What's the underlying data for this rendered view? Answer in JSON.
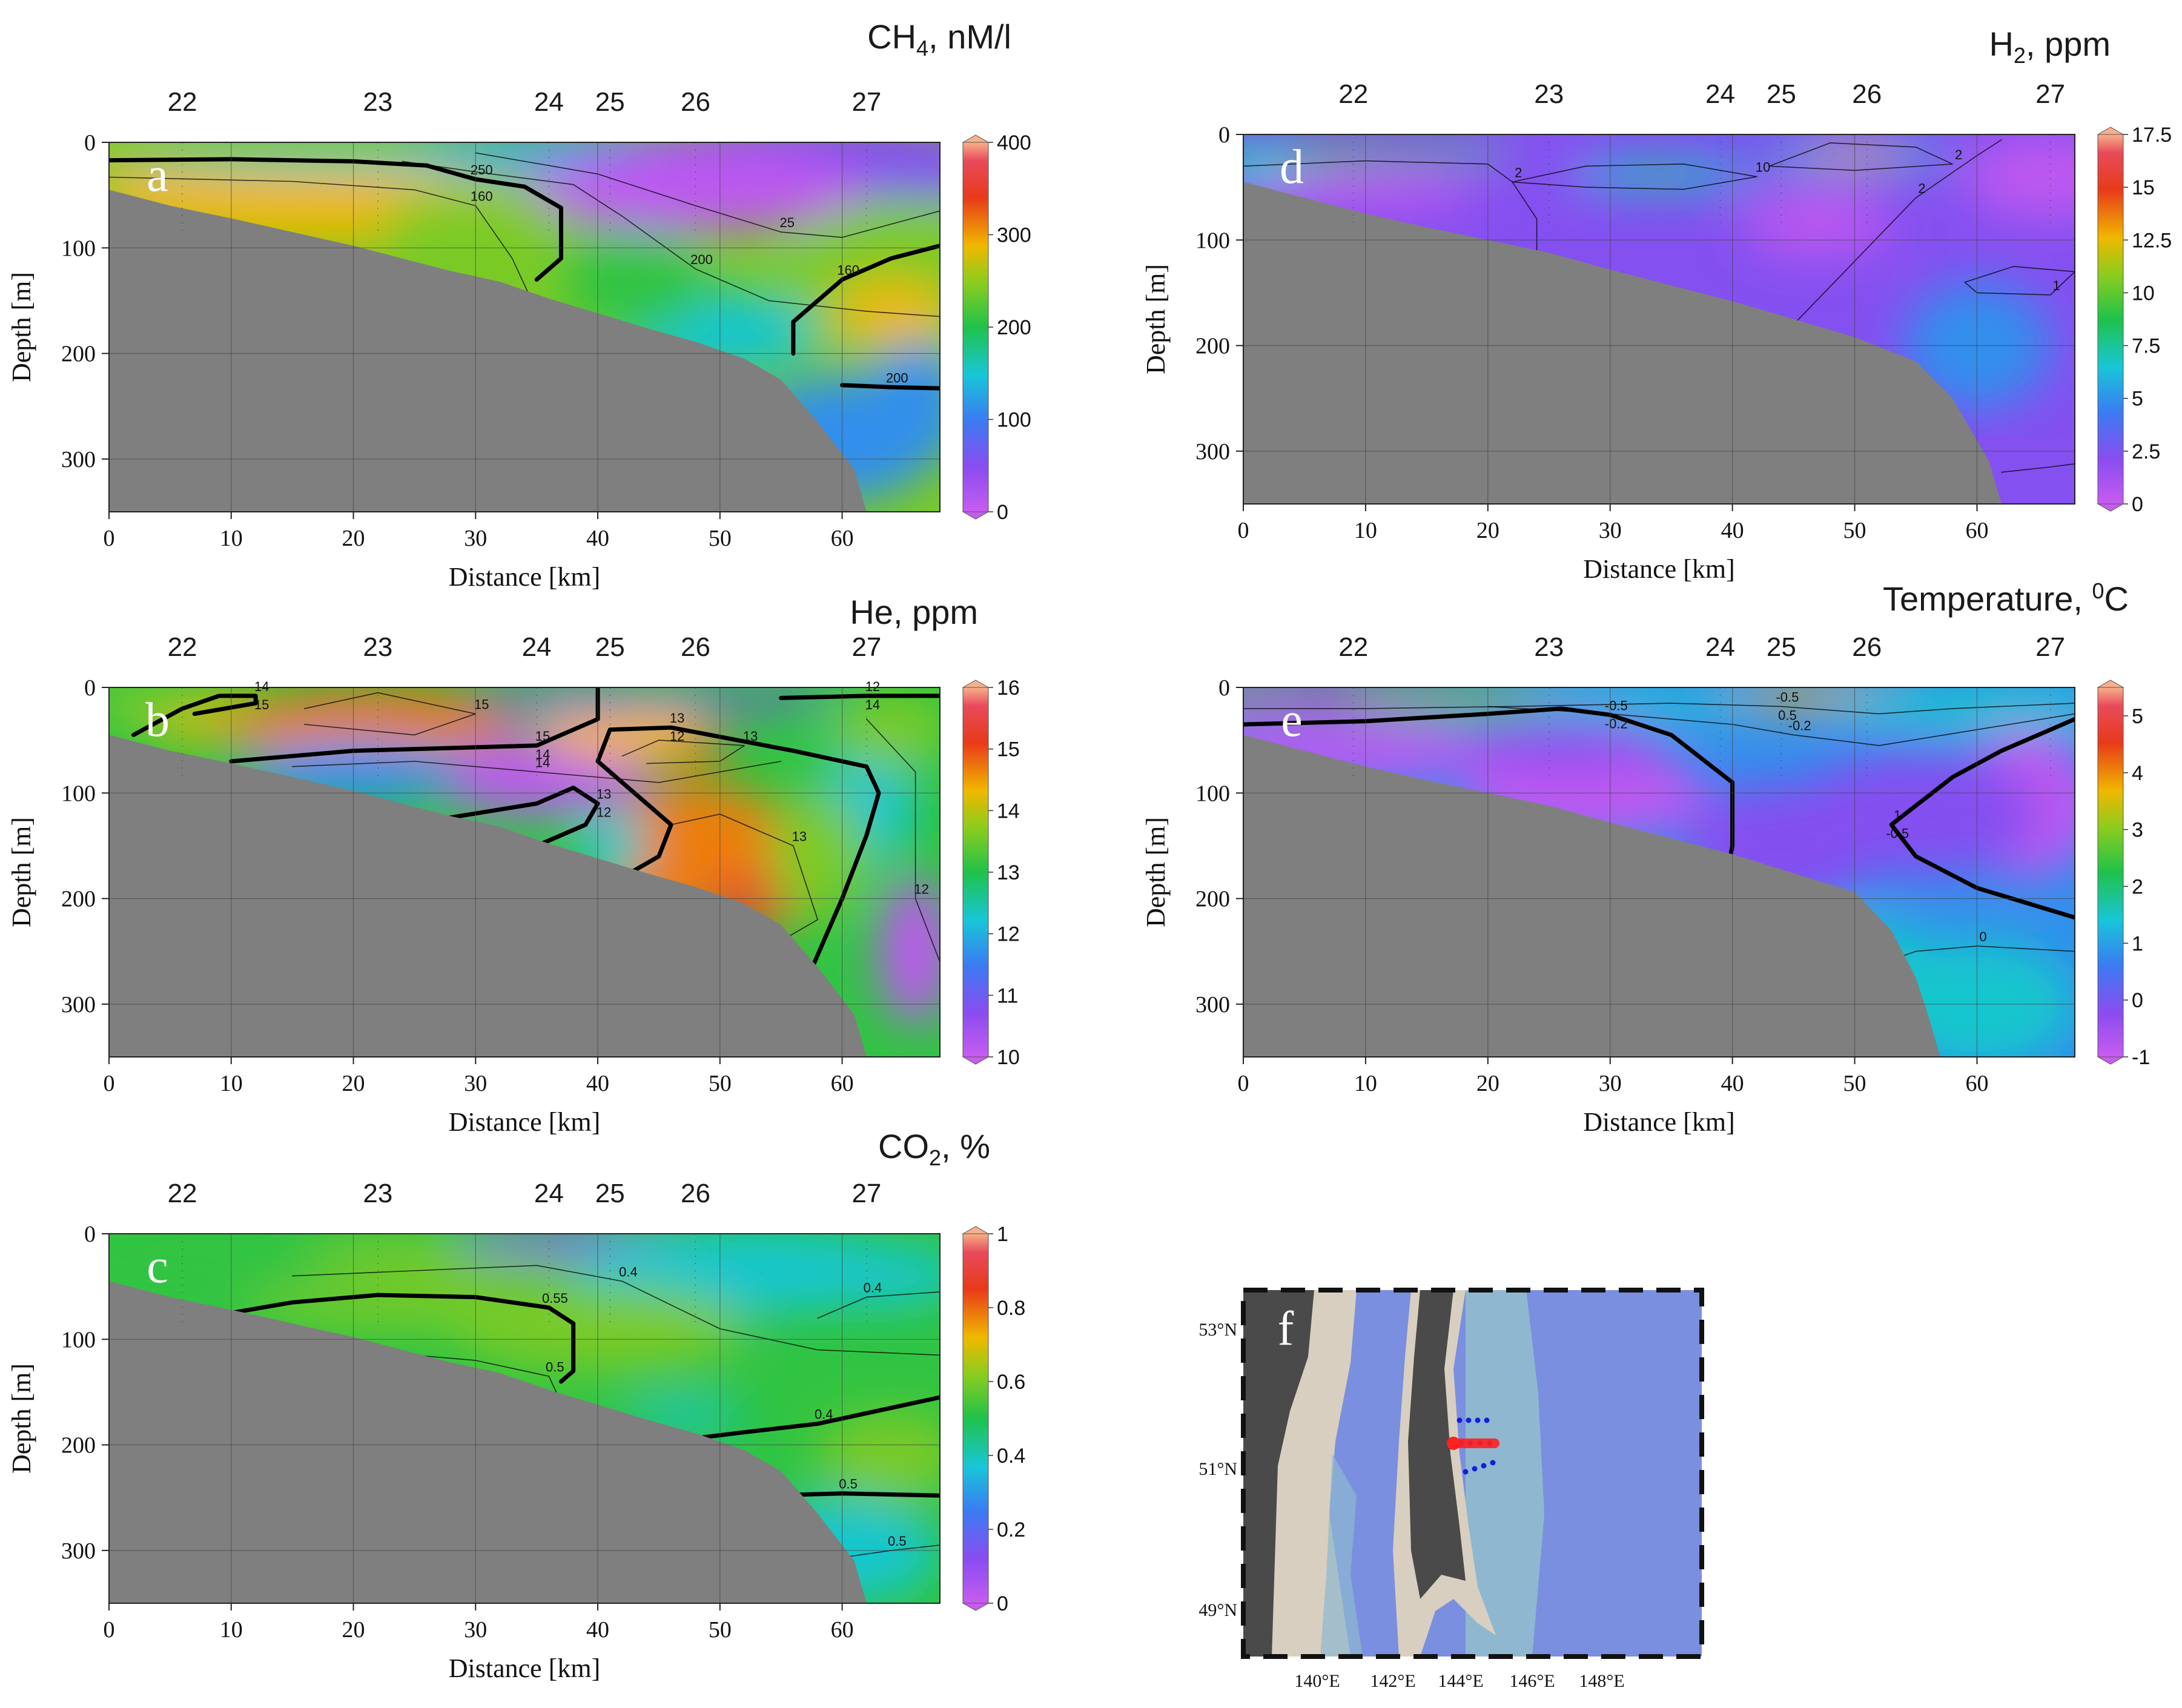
{
  "colors": {
    "seafloor": "#7f7f7f",
    "contour": "#000000",
    "grid": "#444444",
    "land": "#4a4a4a",
    "shelf": "#d8cfc0",
    "sea_shallow": "#8fb8d0",
    "sea_deep": "#7b8fe0",
    "station_route": "#ff2020",
    "station_dots": "#1020e0"
  },
  "chart_data": [
    {
      "id": "a",
      "type": "heatmap",
      "panel_label": "a",
      "title": "CH",
      "title_sub": "4",
      "title_rest": ", nM/l",
      "xlabel": "Distance [km]",
      "ylabel": "Depth [m]",
      "xlim": [
        0,
        68
      ],
      "ylim": [
        0,
        350
      ],
      "xticks": [
        0,
        10,
        20,
        30,
        40,
        50,
        60
      ],
      "yticks": [
        0,
        100,
        200,
        300
      ],
      "stations": [
        {
          "label": "22",
          "x": 6
        },
        {
          "label": "23",
          "x": 22
        },
        {
          "label": "24",
          "x": 36
        },
        {
          "label": "25",
          "x": 41
        },
        {
          "label": "26",
          "x": 48
        },
        {
          "label": "27",
          "x": 62
        }
      ],
      "colorbar": {
        "min": 0,
        "max": 400,
        "ticks": [
          "0",
          "100",
          "200",
          "300",
          "400"
        ]
      },
      "contour_labels": [
        "250",
        "160",
        "200",
        "160",
        "200",
        "25"
      ]
    },
    {
      "id": "b",
      "type": "heatmap",
      "panel_label": "b",
      "title": "He, ppm",
      "xlabel": "Distance [km]",
      "ylabel": "Depth [m]",
      "xlim": [
        0,
        68
      ],
      "ylim": [
        0,
        350
      ],
      "xticks": [
        0,
        10,
        20,
        30,
        40,
        50,
        60
      ],
      "yticks": [
        0,
        100,
        200,
        300
      ],
      "stations": [
        {
          "label": "22",
          "x": 6
        },
        {
          "label": "23",
          "x": 22
        },
        {
          "label": "24",
          "x": 35
        },
        {
          "label": "25",
          "x": 41
        },
        {
          "label": "26",
          "x": 48
        },
        {
          "label": "27",
          "x": 62
        }
      ],
      "colorbar": {
        "min": 10,
        "max": 16,
        "ticks": [
          "10",
          "11",
          "12",
          "13",
          "14",
          "15",
          "16"
        ]
      },
      "contour_labels": [
        "14",
        "15",
        "13",
        "13",
        "12",
        "14",
        "15",
        "13",
        "13",
        "12",
        "15",
        "14",
        "12",
        "12",
        "14"
      ]
    },
    {
      "id": "c",
      "type": "heatmap",
      "panel_label": "c",
      "title": "CO",
      "title_sub": "2",
      "title_rest": ", %",
      "xlabel": "Distance [km]",
      "ylabel": "Depth [m]",
      "xlim": [
        0,
        68
      ],
      "ylim": [
        0,
        350
      ],
      "xticks": [
        0,
        10,
        20,
        30,
        40,
        50,
        60
      ],
      "yticks": [
        0,
        100,
        200,
        300
      ],
      "stations": [
        {
          "label": "22",
          "x": 6
        },
        {
          "label": "23",
          "x": 22
        },
        {
          "label": "24",
          "x": 36
        },
        {
          "label": "25",
          "x": 41
        },
        {
          "label": "26",
          "x": 48
        },
        {
          "label": "27",
          "x": 62
        }
      ],
      "colorbar": {
        "min": 0,
        "max": 1,
        "ticks": [
          "0",
          "0.2",
          "0.4",
          "0.6",
          "0.8",
          "1"
        ]
      },
      "contour_labels": [
        "0.55",
        "0.4",
        "0.5",
        "0.4",
        "0.5",
        "0.5",
        "0.4"
      ]
    },
    {
      "id": "d",
      "type": "heatmap",
      "panel_label": "d",
      "title": "H",
      "title_sub": "2",
      "title_rest": ", ppm",
      "xlabel": "Distance [km]",
      "ylabel": "Depth [m]",
      "xlim": [
        0,
        68
      ],
      "ylim": [
        0,
        350
      ],
      "xticks": [
        0,
        10,
        20,
        30,
        40,
        50,
        60
      ],
      "yticks": [
        0,
        100,
        200,
        300
      ],
      "stations": [
        {
          "label": "22",
          "x": 9
        },
        {
          "label": "23",
          "x": 25
        },
        {
          "label": "24",
          "x": 39
        },
        {
          "label": "25",
          "x": 44
        },
        {
          "label": "26",
          "x": 51
        },
        {
          "label": "27",
          "x": 66
        }
      ],
      "colorbar": {
        "min": 0,
        "max": 17.5,
        "ticks": [
          "0",
          "2.5",
          "5",
          "7.5",
          "10",
          "12.5",
          "15",
          "17.5"
        ]
      },
      "contour_labels": [
        "2",
        "10",
        "2",
        "2",
        "1"
      ]
    },
    {
      "id": "e",
      "type": "heatmap",
      "panel_label": "e",
      "title": "Temperature, ",
      "title_sup": "0",
      "title_rest": "C",
      "xlabel": "Distance [km]",
      "ylabel": "Depth [m]",
      "xlim": [
        0,
        68
      ],
      "ylim": [
        0,
        350
      ],
      "xticks": [
        0,
        10,
        20,
        30,
        40,
        50,
        60
      ],
      "yticks": [
        0,
        100,
        200,
        300
      ],
      "stations": [
        {
          "label": "22",
          "x": 9
        },
        {
          "label": "23",
          "x": 25
        },
        {
          "label": "24",
          "x": 39
        },
        {
          "label": "25",
          "x": 44
        },
        {
          "label": "26",
          "x": 51
        },
        {
          "label": "27",
          "x": 66
        }
      ],
      "colorbar": {
        "min": -1,
        "max": 5.5,
        "ticks": [
          "-1",
          "0",
          "1",
          "2",
          "3",
          "4",
          "5"
        ]
      },
      "contour_labels": [
        "-0.5",
        "1",
        "-0.5",
        "-0.2",
        "0",
        "-0.2",
        "-0.5",
        "0.5"
      ]
    }
  ],
  "map": {
    "panel_label": "f",
    "lat_labels": [
      "53°N",
      "51°N",
      "49°N"
    ],
    "lon_labels": [
      "140°E",
      "142°E",
      "144°E",
      "146°E",
      "148°E"
    ]
  }
}
